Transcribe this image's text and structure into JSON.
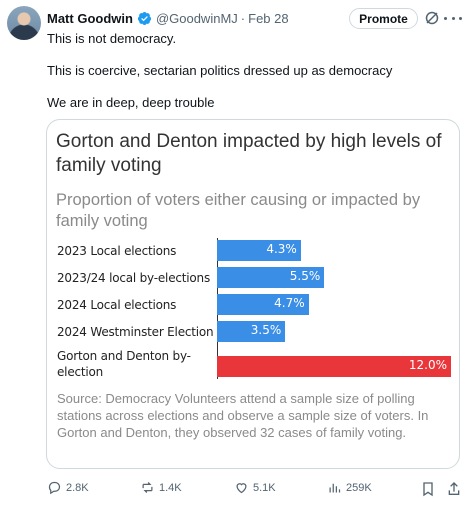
{
  "tweet": {
    "author": "Matt Goodwin",
    "handle": "@GoodwinMJ",
    "separator": "·",
    "date": "Feb 28",
    "promote_label": "Promote",
    "lines": [
      "This is not democracy.",
      "This is coercive, sectarian politics dressed up as democracy",
      "We are in deep, deep trouble"
    ]
  },
  "card": {
    "title": "Gorton and Denton impacted by high levels of family voting",
    "subtitle": "Proportion of voters either causing or impacted by family voting",
    "source": "Source: Democracy Volunteers attend a sample size of polling stations across elections and observe a sample size of voters. In Gorton and Denton, they observed 32 cases of family voting."
  },
  "chart_data": {
    "type": "bar",
    "orientation": "horizontal",
    "title": "Gorton and Denton impacted by high levels of family voting",
    "subtitle": "Proportion of voters either causing or impacted by family voting",
    "categories": [
      "2023 Local elections",
      "2023/24 local by-elections",
      "2024 Local elections",
      "2024 Westminster Election",
      "Gorton and Denton by-election"
    ],
    "values": [
      4.3,
      5.5,
      4.7,
      3.5,
      12.0
    ],
    "value_labels": [
      "4.3%",
      "5.5%",
      "4.7%",
      "3.5%",
      "12.0%"
    ],
    "colors": [
      "#3a8ee6",
      "#3a8ee6",
      "#3a8ee6",
      "#3a8ee6",
      "#e8363a"
    ],
    "xlim": [
      0,
      12.0
    ],
    "grid": false
  },
  "actions": {
    "replies": "2.8K",
    "reposts": "1.4K",
    "likes": "5.1K",
    "views": "259K"
  },
  "colors": {
    "verified": "#1d9bf0",
    "bar_blue": "#3a8ee6",
    "bar_red": "#e8363a",
    "muted": "#536471"
  }
}
